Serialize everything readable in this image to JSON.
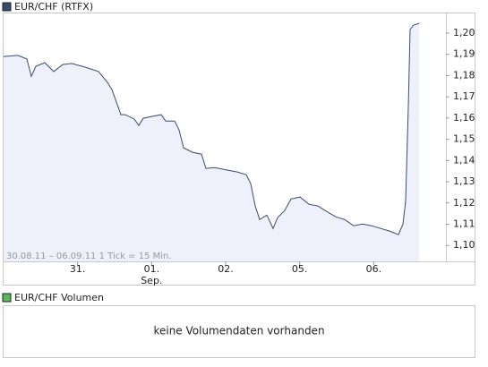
{
  "chart_data": {
    "type": "line",
    "note": "30.08.11 – 06.09.11   1 Tick = 15 Min.",
    "x": [
      0,
      0.194,
      0.315,
      0.375,
      0.435,
      0.556,
      0.677,
      0.798,
      0.919,
      1.101,
      1.282,
      1.403,
      1.464,
      1.585,
      1.645,
      1.766,
      1.827,
      1.887,
      2.008,
      2.129,
      2.189,
      2.31,
      2.371,
      2.431,
      2.552,
      2.673,
      2.734,
      2.855,
      3.036,
      3.157,
      3.278,
      3.339,
      3.399,
      3.46,
      3.556,
      3.641,
      3.702,
      3.798,
      3.883,
      4.004,
      4.125,
      4.246,
      4.367,
      4.488,
      4.609,
      4.73,
      4.851,
      4.972,
      5.093,
      5.214,
      5.335,
      5.395,
      5.431,
      5.468,
      5.492,
      5.54,
      5.613
    ],
    "series": [
      {
        "name": "EUR/CHF (RTFX)",
        "color": "#3a4a6e",
        "fill": "#eef0fb",
        "values": [
          1.189,
          1.1895,
          1.1878,
          1.1797,
          1.1844,
          1.1861,
          1.1819,
          1.1852,
          1.1857,
          1.184,
          1.1819,
          1.1768,
          1.1734,
          1.1616,
          1.1616,
          1.1595,
          1.1565,
          1.1599,
          1.1608,
          1.1616,
          1.1586,
          1.1586,
          1.1544,
          1.146,
          1.1439,
          1.143,
          1.1363,
          1.1367,
          1.1354,
          1.1346,
          1.1333,
          1.1291,
          1.1186,
          1.1122,
          1.1143,
          1.108,
          1.1131,
          1.1165,
          1.1219,
          1.1228,
          1.1194,
          1.1186,
          1.116,
          1.1135,
          1.1122,
          1.1093,
          1.1101,
          1.1093,
          1.108,
          1.1068,
          1.1051,
          1.1101,
          1.1207,
          1.165,
          1.2017,
          1.2038,
          1.2046
        ]
      }
    ],
    "xlim": [
      0,
      6
    ],
    "xticks": [
      {
        "value": 1,
        "label": "31."
      },
      {
        "value": 2,
        "label": "01."
      },
      {
        "value": 3,
        "label": "02."
      },
      {
        "value": 4,
        "label": "05."
      },
      {
        "value": 5,
        "label": "06."
      }
    ],
    "x_sublabels": [
      {
        "value": 2,
        "label": "Sep."
      }
    ],
    "ylim": [
      1.0925,
      1.2097
    ],
    "yticks": [
      {
        "value": 1.1,
        "label": "1,10"
      },
      {
        "value": 1.11,
        "label": "1,11"
      },
      {
        "value": 1.12,
        "label": "1,12"
      },
      {
        "value": 1.13,
        "label": "1,13"
      },
      {
        "value": 1.14,
        "label": "1,14"
      },
      {
        "value": 1.15,
        "label": "1,15"
      },
      {
        "value": 1.16,
        "label": "1,16"
      },
      {
        "value": 1.17,
        "label": "1,17"
      },
      {
        "value": 1.18,
        "label": "1,18"
      },
      {
        "value": 1.19,
        "label": "1,19"
      },
      {
        "value": 1.2,
        "label": "1,20"
      }
    ],
    "grid": false,
    "volume": {
      "name": "EUR/CHF Volumen",
      "color": "#5cb85c",
      "message": "keine Volumendaten vorhanden"
    }
  }
}
